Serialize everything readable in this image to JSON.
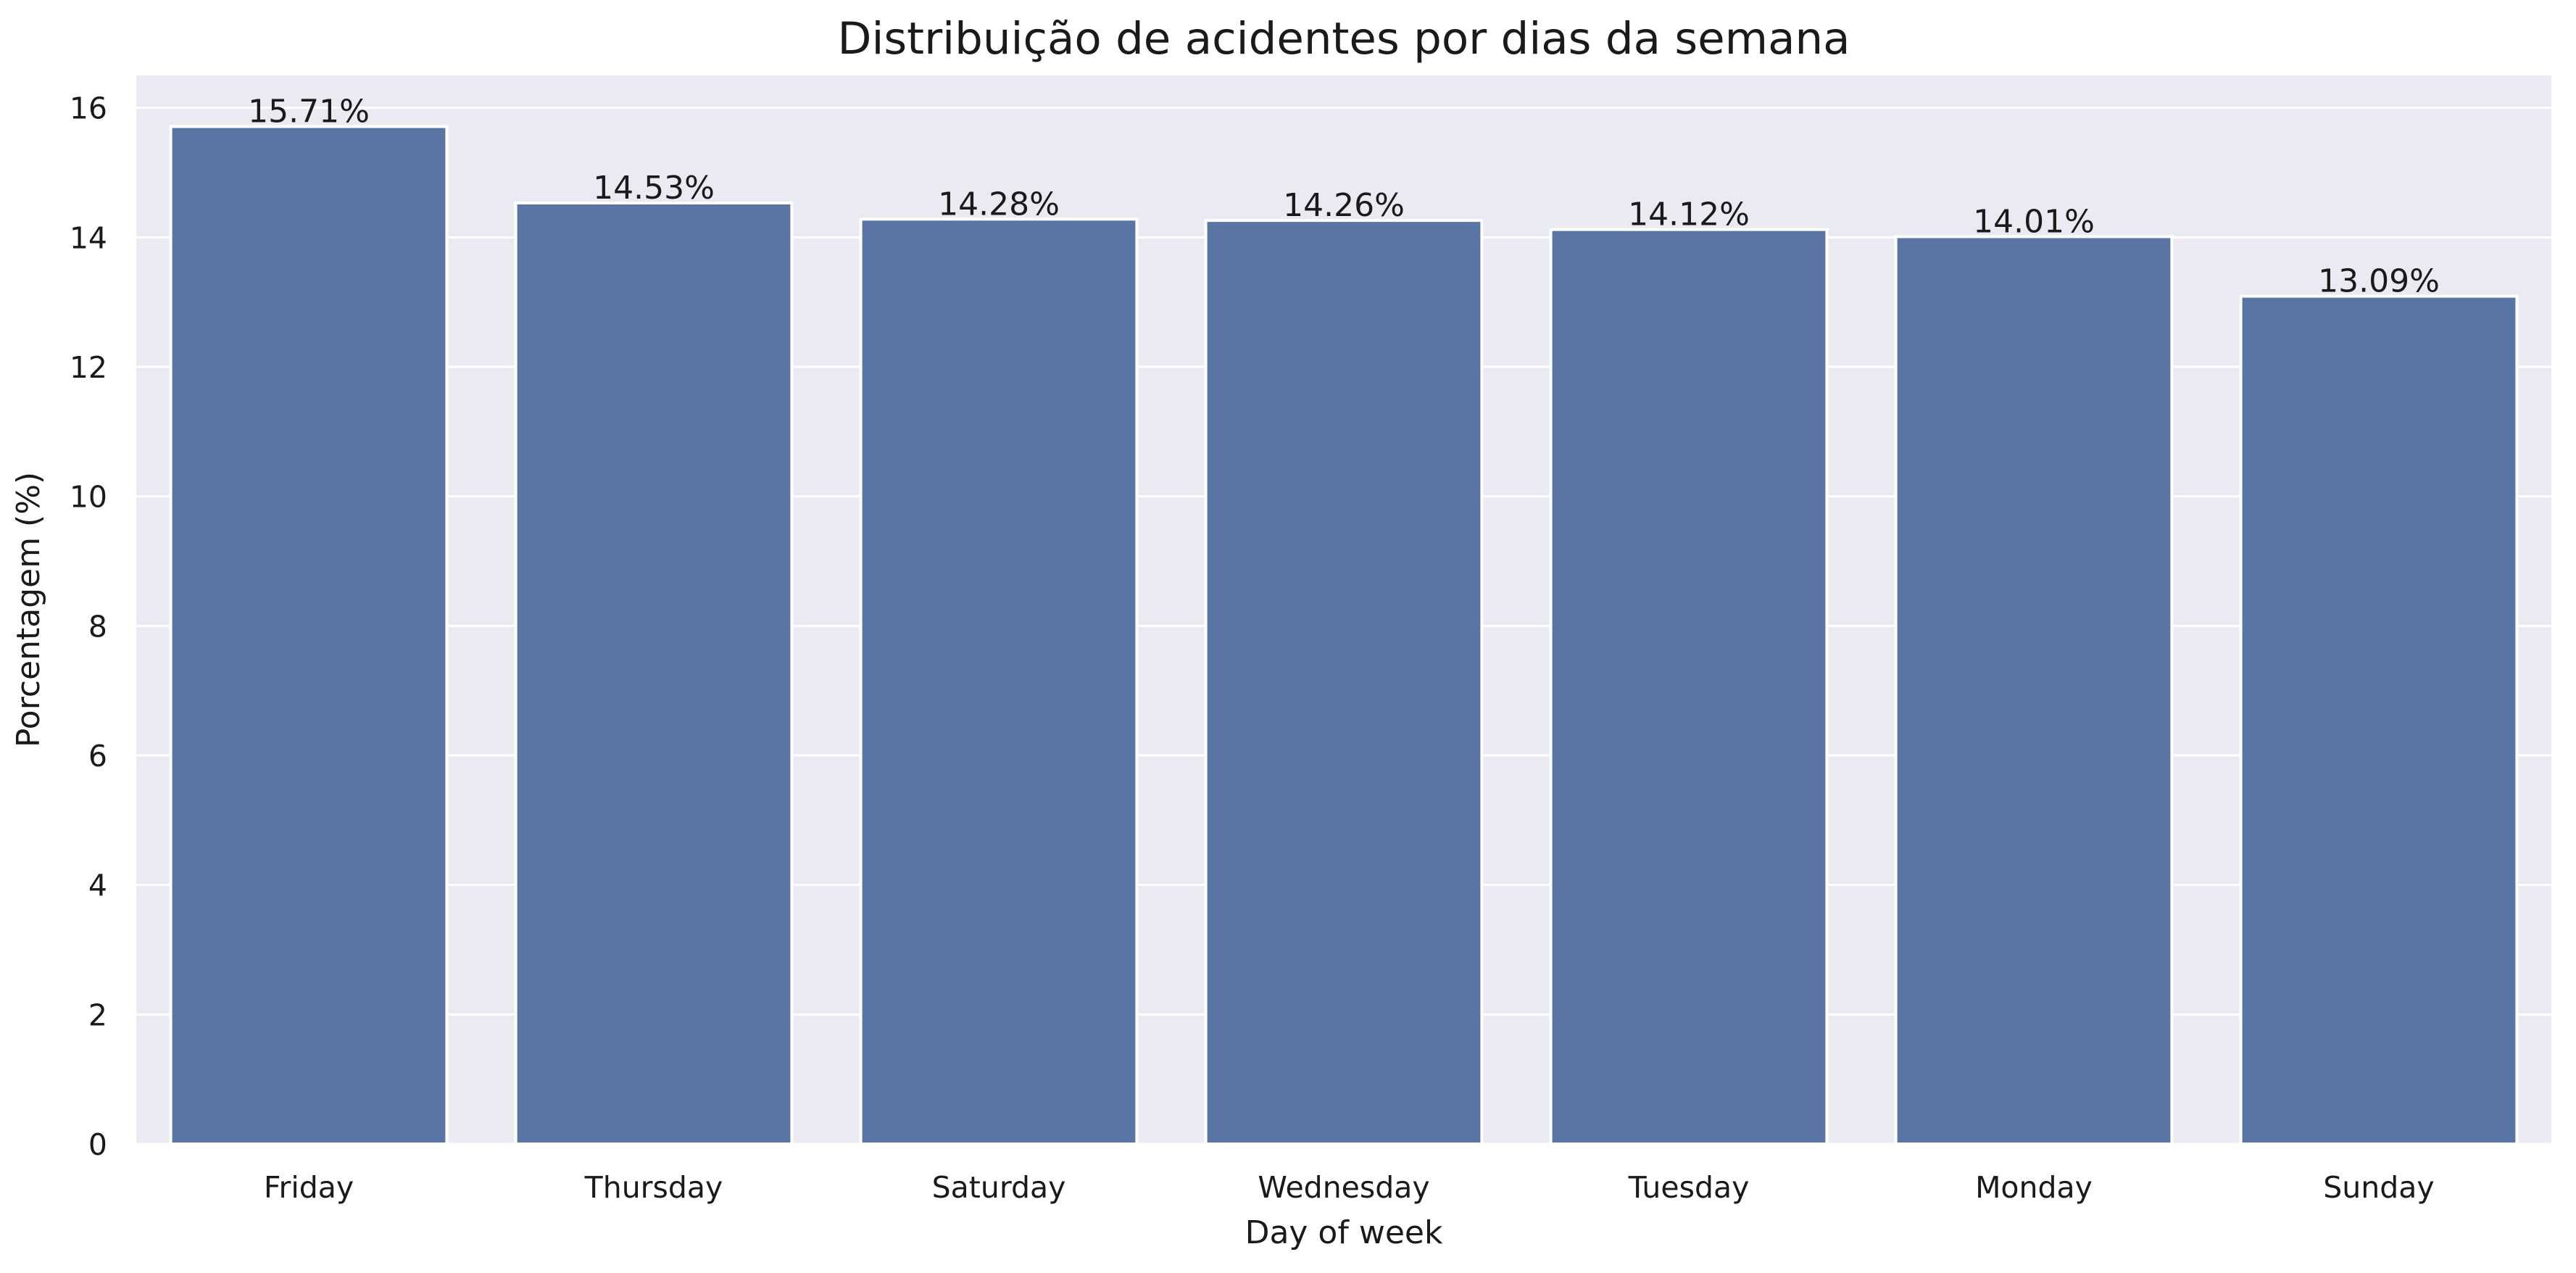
{
  "chart_data": {
    "type": "bar",
    "title": "Distribuição de acidentes por dias da semana",
    "xlabel": "Day of week",
    "ylabel": "Porcentagem (%)",
    "categories": [
      "Friday",
      "Thursday",
      "Saturday",
      "Wednesday",
      "Tuesday",
      "Monday",
      "Sunday"
    ],
    "values": [
      15.71,
      14.53,
      14.28,
      14.26,
      14.12,
      14.01,
      13.09
    ],
    "data_labels": [
      "15.71%",
      "14.53%",
      "14.28%",
      "14.26%",
      "14.12%",
      "14.01%",
      "13.09%"
    ],
    "ylim": [
      0,
      16.5
    ],
    "yticks": [
      0,
      2,
      4,
      6,
      8,
      10,
      12,
      14,
      16
    ],
    "grid": true,
    "legend": "none",
    "colors": {
      "bar": "#5975a4",
      "plot_background": "#eaeaf2",
      "grid": "#ffffff",
      "text": "#1a1a1a"
    }
  }
}
